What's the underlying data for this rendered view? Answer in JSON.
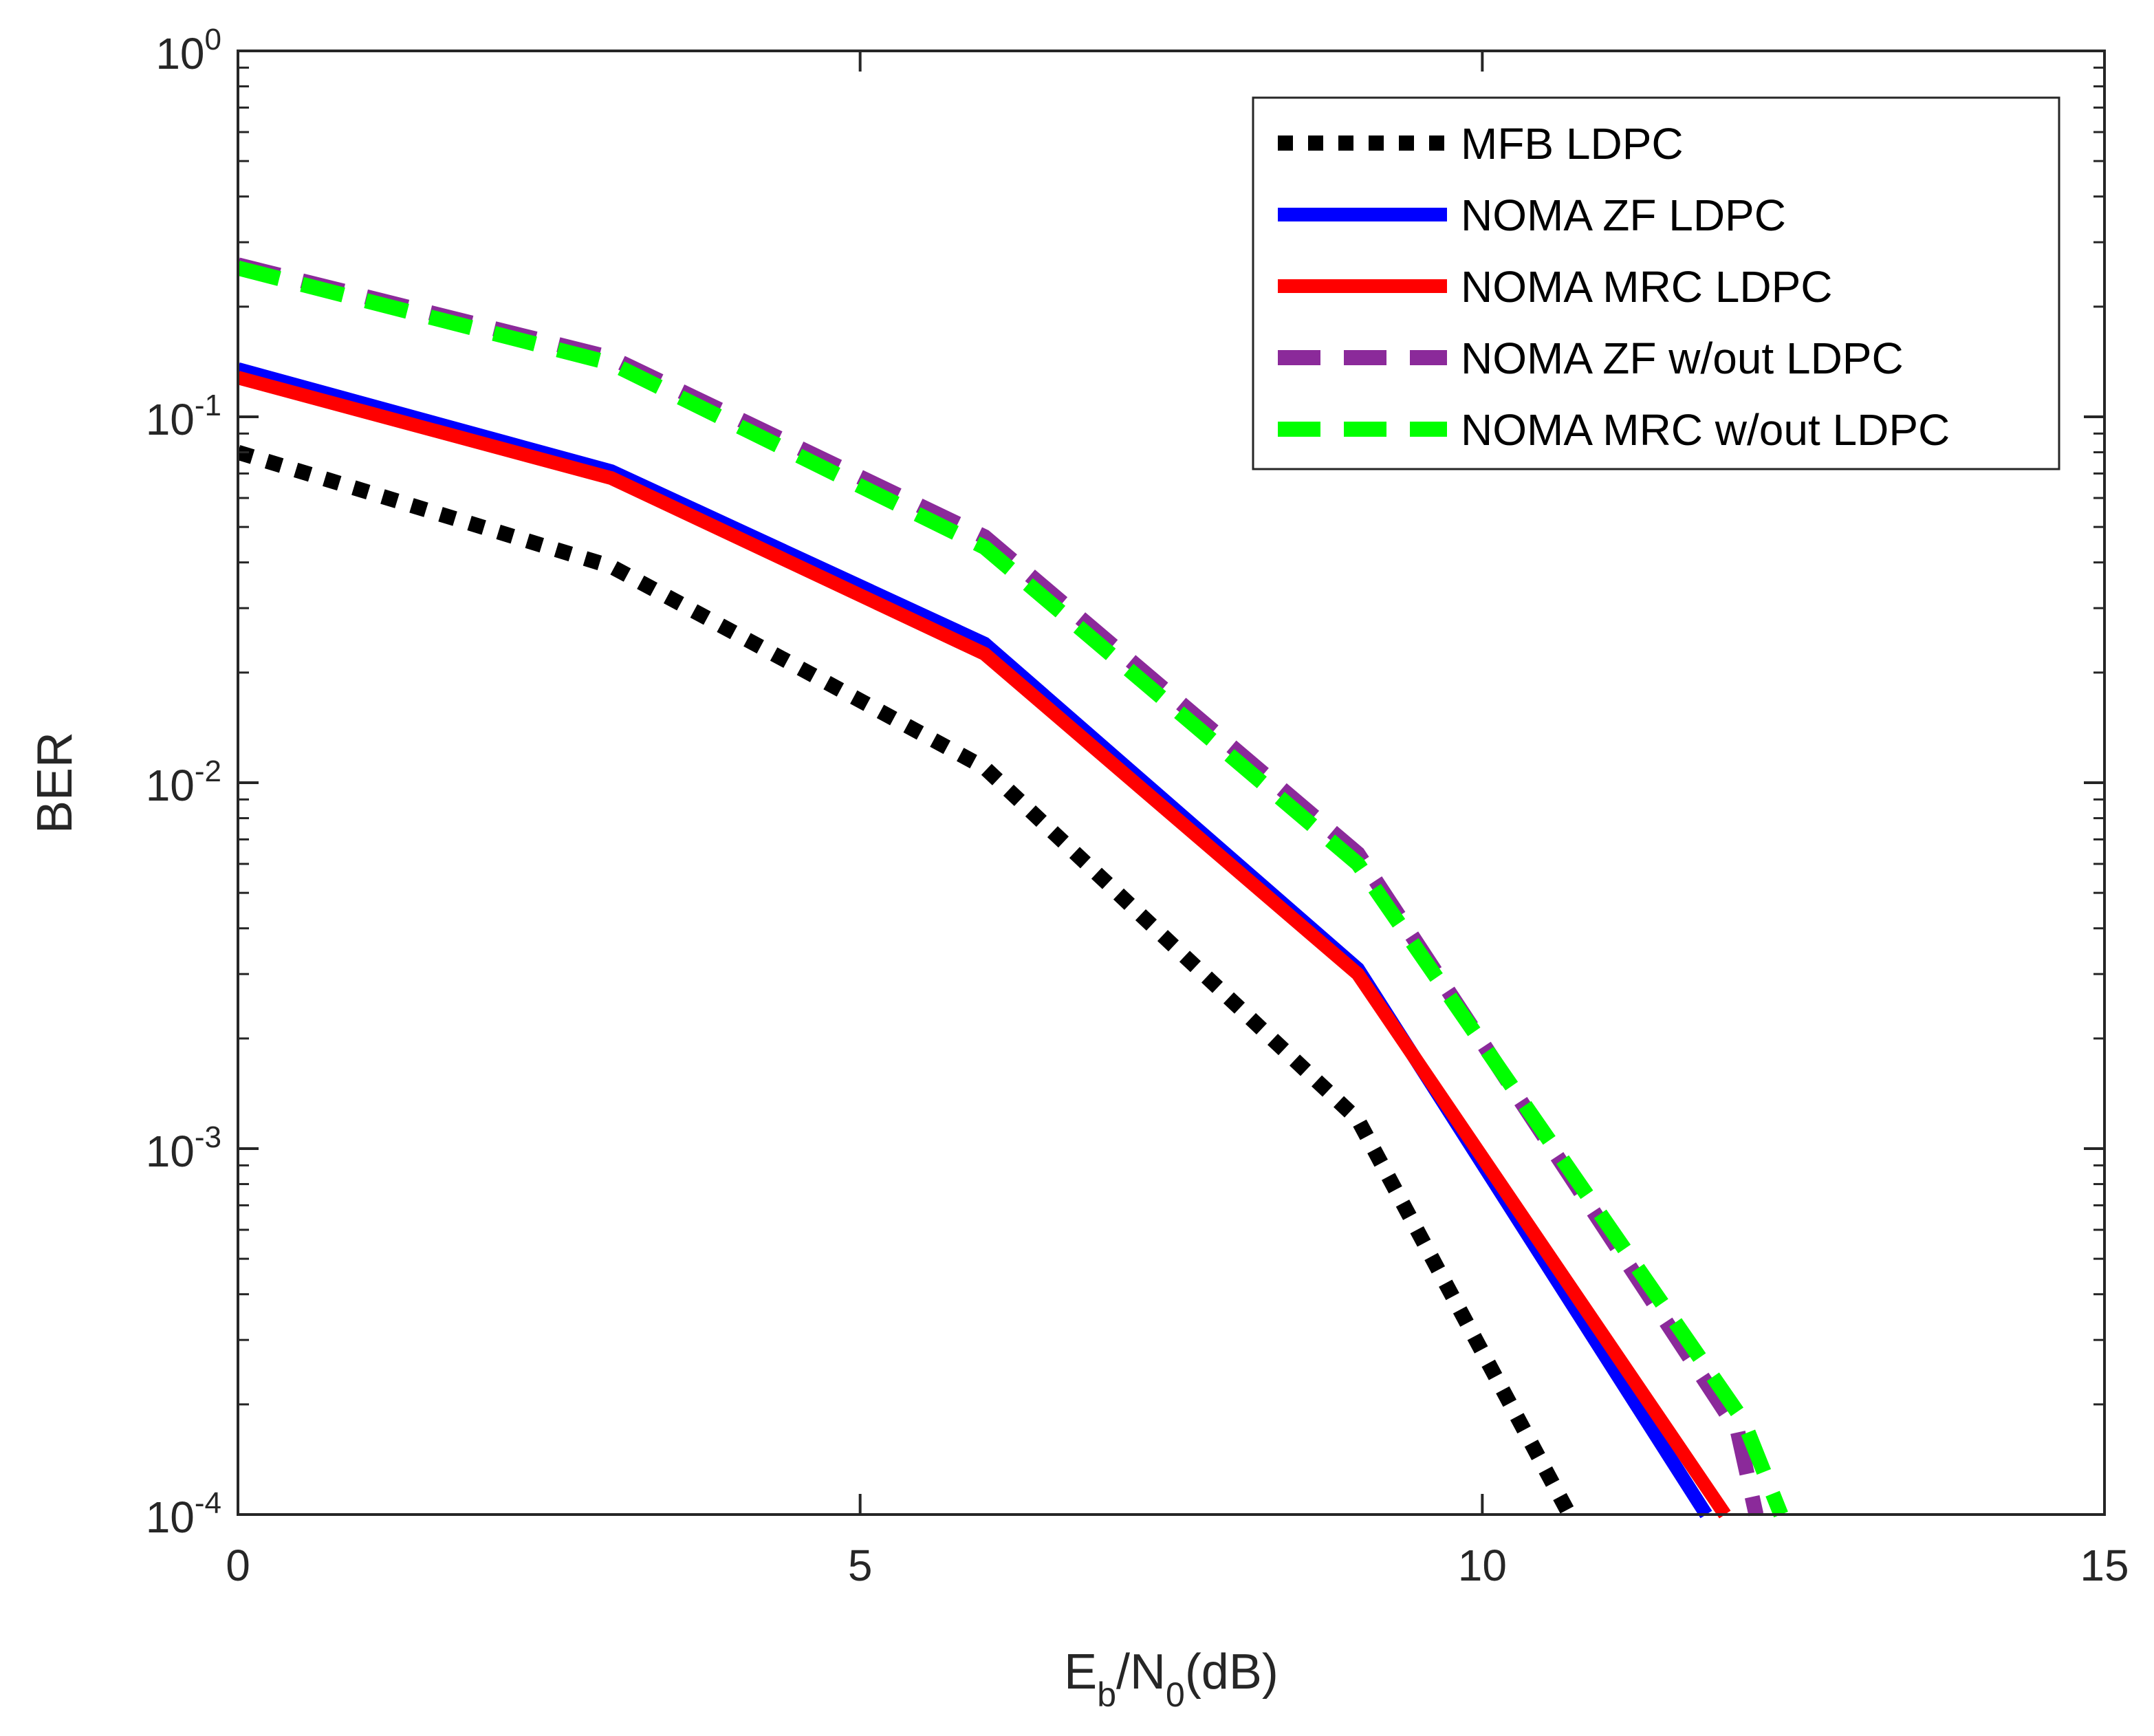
{
  "chart_data": {
    "type": "line",
    "xlabel": {
      "main": "E",
      "sub1": "b",
      "mid": "/N",
      "sub2": "0",
      "tail": "(dB)"
    },
    "ylabel": "BER",
    "xlim": [
      0,
      15
    ],
    "ylim": [
      0.0001,
      1
    ],
    "yscale": "log",
    "x_ticks": [
      "0",
      "5",
      "10",
      "15"
    ],
    "y_ticks": [
      {
        "base": "10",
        "exp": "0"
      },
      {
        "base": "10",
        "exp": "-1"
      },
      {
        "base": "10",
        "exp": "-2"
      },
      {
        "base": "10",
        "exp": "-3"
      },
      {
        "base": "10",
        "exp": "-4"
      }
    ],
    "grid": false,
    "legend_position": "top-right",
    "series": [
      {
        "name": "MFB LDPC",
        "color": "#000000",
        "style": "dotted",
        "x": [
          0,
          3,
          6,
          9,
          10.7
        ],
        "y": [
          0.08,
          0.039,
          0.011,
          0.0012,
          0.0001
        ]
      },
      {
        "name": "NOMA ZF LDPC",
        "color": "#0000ff",
        "style": "solid",
        "x": [
          0,
          3,
          6,
          9,
          11.8
        ],
        "y": [
          0.135,
          0.071,
          0.024,
          0.0031,
          0.0001
        ]
      },
      {
        "name": "NOMA MRC LDPC",
        "color": "#ff0000",
        "style": "solid",
        "x": [
          0,
          3,
          6,
          9,
          11.95
        ],
        "y": [
          0.128,
          0.068,
          0.0225,
          0.003,
          0.0001
        ]
      },
      {
        "name": "NOMA ZF w/out LDPC",
        "color": "#8b2a9a",
        "style": "dashed",
        "x": [
          0,
          3,
          6,
          9,
          12.05,
          12.2
        ],
        "y": [
          0.26,
          0.145,
          0.047,
          0.0064,
          0.00017,
          0.0001
        ]
      },
      {
        "name": "NOMA MRC w/out LDPC",
        "color": "#00ff00",
        "style": "dashed",
        "x": [
          0,
          3,
          6,
          9,
          12.1,
          12.4
        ],
        "y": [
          0.255,
          0.14,
          0.044,
          0.006,
          0.00018,
          0.0001
        ]
      }
    ]
  }
}
